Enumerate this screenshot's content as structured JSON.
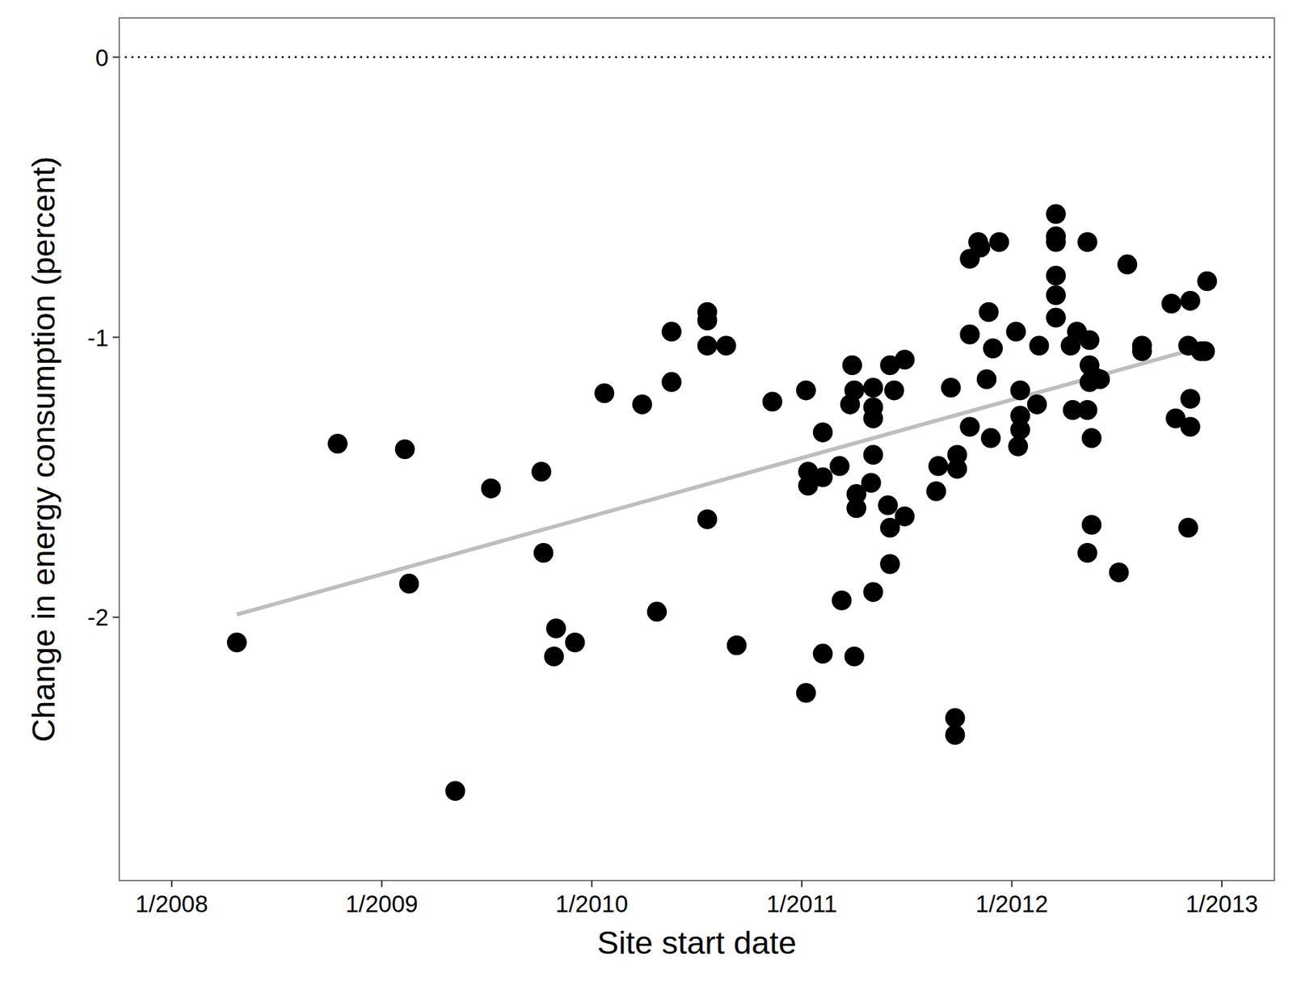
{
  "chart_data": {
    "type": "scatter",
    "x_label": "Site start date",
    "y_label": "Change in energy consumption (percent)",
    "xlim": [
      2007.75,
      2013.25
    ],
    "ylim": [
      -2.94,
      0.14
    ],
    "xticks": [
      {
        "value": 2008,
        "label": "1/2008"
      },
      {
        "value": 2009,
        "label": "1/2009"
      },
      {
        "value": 2010,
        "label": "1/2010"
      },
      {
        "value": 2011,
        "label": "1/2011"
      },
      {
        "value": 2012,
        "label": "1/2012"
      },
      {
        "value": 2013,
        "label": "1/2013"
      }
    ],
    "yticks": [
      0,
      -1,
      -2
    ],
    "grid": false,
    "reference_lines": [
      {
        "value": 0,
        "line_style": "dotted",
        "color": "#000000"
      }
    ],
    "series": [
      {
        "type": "scatter",
        "marker": "circle",
        "color": "#000000",
        "x": [
          2008.31,
          2008.79,
          2009.11,
          2009.13,
          2009.35,
          2009.52,
          2009.76,
          2009.77,
          2009.83,
          2009.82,
          2009.92,
          2010.06,
          2010.24,
          2010.31,
          2010.38,
          2010.38,
          2010.55,
          2010.55,
          2010.55,
          2010.64,
          2010.55,
          2010.69,
          2010.86,
          2011.02,
          2011.03,
          2011.03,
          2011.02,
          2011.1,
          2011.1,
          2011.1,
          2011.18,
          2011.19,
          2011.24,
          2011.23,
          2011.25,
          2011.26,
          2011.26,
          2011.25,
          2011.34,
          2011.34,
          2011.34,
          2011.34,
          2011.33,
          2011.34,
          2011.42,
          2011.44,
          2011.41,
          2011.42,
          2011.42,
          2011.49,
          2011.49,
          2011.65,
          2011.64,
          2011.71,
          2011.74,
          2011.74,
          2011.73,
          2011.73,
          2011.8,
          2011.8,
          2011.8,
          2011.84,
          2011.85,
          2011.94,
          2011.89,
          2011.91,
          2011.88,
          2011.9,
          2012.02,
          2012.04,
          2012.04,
          2012.04,
          2012.03,
          2012.13,
          2012.12,
          2012.21,
          2012.21,
          2012.21,
          2012.21,
          2012.21,
          2012.21,
          2012.28,
          2012.31,
          2012.29,
          2012.36,
          2012.37,
          2012.37,
          2012.37,
          2012.36,
          2012.39,
          2012.42,
          2012.38,
          2012.38,
          2012.36,
          2012.51,
          2012.55,
          2012.62,
          2012.62,
          2012.76,
          2012.85,
          2012.84,
          2012.78,
          2012.85,
          2012.85,
          2012.84,
          2012.9,
          2012.93,
          2012.92
        ],
        "values": [
          -2.09,
          -1.38,
          -1.4,
          -1.88,
          -2.62,
          -1.54,
          -1.48,
          -1.77,
          -2.04,
          -2.14,
          -2.09,
          -1.2,
          -1.24,
          -1.98,
          -0.98,
          -1.16,
          -0.91,
          -0.94,
          -1.03,
          -1.03,
          -1.65,
          -2.1,
          -1.23,
          -1.19,
          -1.48,
          -1.53,
          -2.27,
          -1.34,
          -1.5,
          -2.13,
          -1.46,
          -1.94,
          -1.1,
          -1.24,
          -1.19,
          -1.56,
          -1.61,
          -2.14,
          -1.18,
          -1.25,
          -1.29,
          -1.42,
          -1.52,
          -1.91,
          -1.1,
          -1.19,
          -1.6,
          -1.68,
          -1.81,
          -1.08,
          -1.64,
          -1.46,
          -1.55,
          -1.18,
          -1.42,
          -1.47,
          -2.36,
          -2.42,
          -0.99,
          -1.32,
          -0.72,
          -0.66,
          -0.68,
          -0.66,
          -0.91,
          -1.04,
          -1.15,
          -1.36,
          -0.98,
          -1.19,
          -1.28,
          -1.33,
          -1.39,
          -1.03,
          -1.24,
          -0.56,
          -0.64,
          -0.66,
          -0.78,
          -0.85,
          -0.93,
          -1.03,
          -0.98,
          -1.26,
          -0.66,
          -1.01,
          -1.1,
          -1.16,
          -1.26,
          -1.14,
          -1.15,
          -1.36,
          -1.67,
          -1.77,
          -1.84,
          -0.74,
          -1.03,
          -1.05,
          -0.88,
          -0.87,
          -1.03,
          -1.29,
          -1.22,
          -1.32,
          -1.68,
          -1.05,
          -0.8,
          -1.05
        ]
      },
      {
        "type": "line",
        "line_style": "solid",
        "color": "#bebebe",
        "x": [
          2008.31,
          2012.93
        ],
        "values": [
          -1.99,
          -1.03
        ]
      }
    ]
  }
}
